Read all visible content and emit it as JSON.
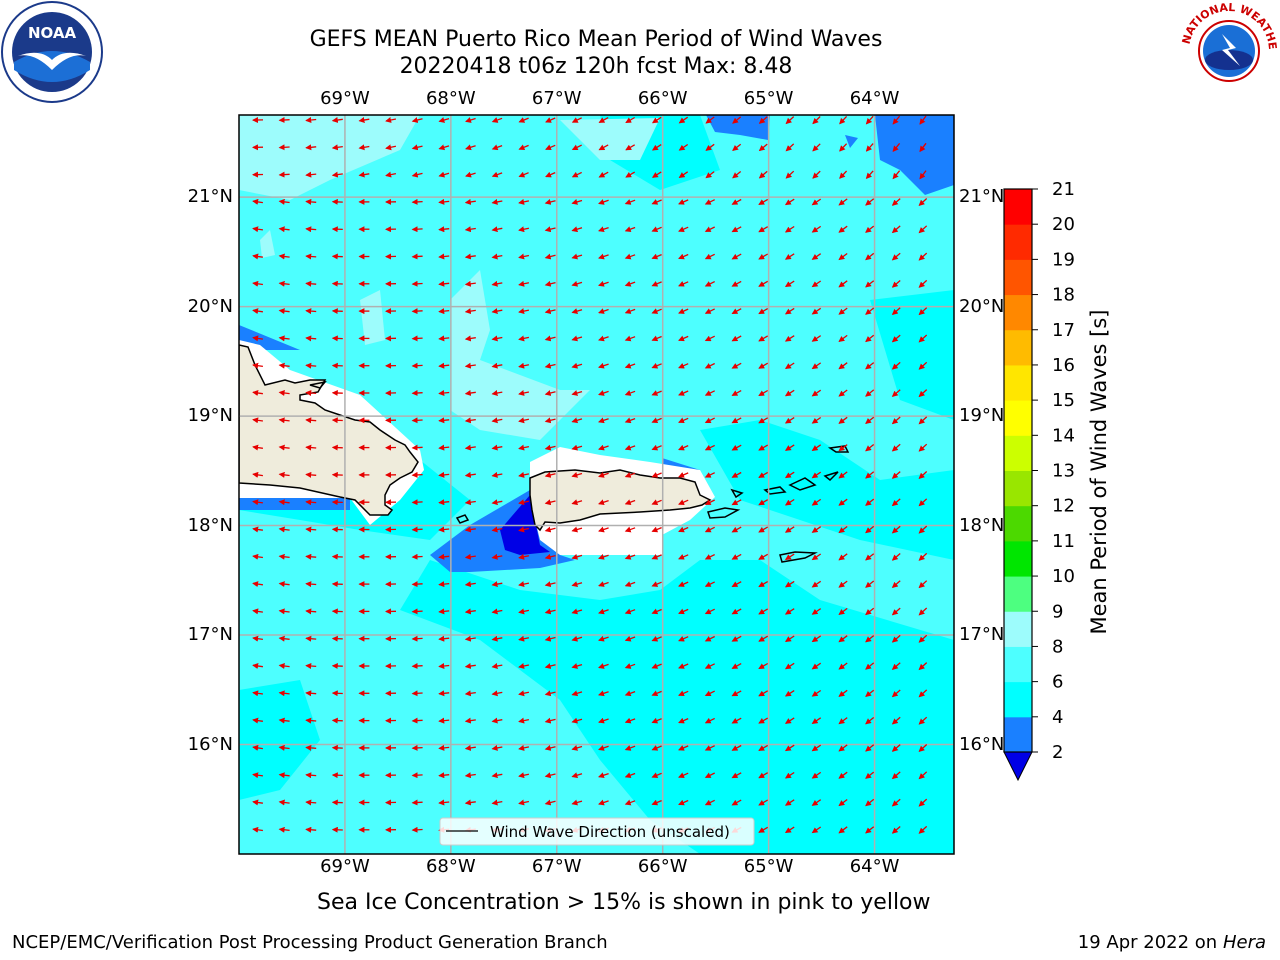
{
  "title": {
    "line1": "GEFS MEAN Puerto Rico Mean Period of Wind Waves",
    "line2": "20220418 t06z 120h fcst   Max: 8.48"
  },
  "map": {
    "lon_labels": [
      "69°W",
      "68°W",
      "67°W",
      "66°W",
      "65°W",
      "64°W"
    ],
    "lat_labels": [
      "21°N",
      "20°N",
      "19°N",
      "18°N",
      "17°N",
      "16°N"
    ],
    "lon_range": [
      -70.0,
      -63.25
    ],
    "lat_range": [
      15.0,
      21.75
    ],
    "legend_label": "Wind Wave Direction (unscaled)",
    "colors": {
      "ocean_main": "#4dffff",
      "ocean_cyan": "#00ffff",
      "ocean_light": "#9dfcfc",
      "ocean_blue": "#1a80ff",
      "ocean_dark": "#0000e6",
      "land": "#efecdc",
      "arrow": "#e60000"
    }
  },
  "colorbar": {
    "label": "Mean Period of Wind Waves [s]",
    "ticks": [
      "2",
      "4",
      "6",
      "8",
      "9",
      "10",
      "11",
      "12",
      "13",
      "14",
      "15",
      "16",
      "17",
      "18",
      "19",
      "20",
      "21"
    ],
    "colors": [
      "#1a80ff",
      "#00ffff",
      "#4dffff",
      "#9dfcfc",
      "#4dff80",
      "#00e600",
      "#4cd900",
      "#99e600",
      "#ccff00",
      "#ffff00",
      "#ffe600",
      "#ffbb00",
      "#ff8800",
      "#ff5500",
      "#ff2a00",
      "#ff0000"
    ],
    "under_color": "#0000e6"
  },
  "caption": "Sea Ice Concentration > 15% is shown in pink to yellow",
  "footer": {
    "left": "NCEP/EMC/Verification Post Processing Product Generation Branch",
    "right_date": "19 Apr 2022 on",
    "right_machine": "Hera"
  },
  "logos": {
    "noaa_text": "NOAA",
    "nws_text": "NATIONAL WEATHER SERVICE"
  }
}
